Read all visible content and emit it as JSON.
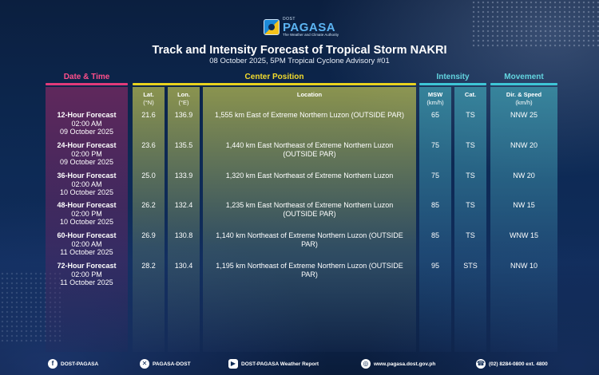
{
  "logo": {
    "small": "DOST",
    "name": "PAGASA",
    "tagline": "The Weather and Climate Authority"
  },
  "header": {
    "title": "Track and Intensity Forecast of Tropical Storm NAKRI",
    "subtitle": "08 October 2025, 5PM Tropical Cyclone Advisory #01"
  },
  "groups": {
    "date": "Date & Time",
    "center": "Center Position",
    "intensity": "Intensity",
    "movement": "Movement"
  },
  "columns": {
    "lat": "Lat.",
    "lat_unit": "(°N)",
    "lon": "Lon.",
    "lon_unit": "(°E)",
    "location": "Location",
    "msw": "MSW",
    "msw_unit": "(km/h)",
    "cat": "Cat.",
    "dir": "Dir. & Speed",
    "dir_unit": "(km/h)"
  },
  "rows": [
    {
      "forecast": "12-Hour Forecast",
      "time": "02:00 AM",
      "date": "09 October 2025",
      "lat": "21.6",
      "lon": "136.9",
      "location": "1,555 km East of Extreme Northern Luzon (OUTSIDE PAR)",
      "msw": "65",
      "cat": "TS",
      "dir": "NNW 25"
    },
    {
      "forecast": "24-Hour Forecast",
      "time": "02:00 PM",
      "date": "09 October 2025",
      "lat": "23.6",
      "lon": "135.5",
      "location": "1,440 km East Northeast of Extreme Northern Luzon (OUTSIDE PAR)",
      "msw": "75",
      "cat": "TS",
      "dir": "NNW 20"
    },
    {
      "forecast": "36-Hour Forecast",
      "time": "02:00 AM",
      "date": "10 October 2025",
      "lat": "25.0",
      "lon": "133.9",
      "location": "1,320 km East Northeast of Extreme Northern Luzon",
      "msw": "75",
      "cat": "TS",
      "dir": "NW 20"
    },
    {
      "forecast": "48-Hour Forecast",
      "time": "02:00 PM",
      "date": "10 October 2025",
      "lat": "26.2",
      "lon": "132.4",
      "location": "1,235 km East Northeast of Extreme Northern Luzon (OUTSIDE PAR)",
      "msw": "85",
      "cat": "TS",
      "dir": "NW 15"
    },
    {
      "forecast": "60-Hour Forecast",
      "time": "02:00 AM",
      "date": "11 October 2025",
      "lat": "26.9",
      "lon": "130.8",
      "location": "1,140 km Northeast of Extreme Northern Luzon (OUTSIDE PAR)",
      "msw": "85",
      "cat": "TS",
      "dir": "WNW 15"
    },
    {
      "forecast": "72-Hour Forecast",
      "time": "02:00 PM",
      "date": "11 October 2025",
      "lat": "28.2",
      "lon": "130.4",
      "location": "1,195 km Northeast of Extreme Northern Luzon (OUTSIDE PAR)",
      "msw": "95",
      "cat": "STS",
      "dir": "NNW 10"
    }
  ],
  "footer": {
    "facebook": "DOST-PAGASA",
    "x": "PAGASA-DOST",
    "youtube": "DOST-PAGASA Weather Report",
    "website": "www.pagasa.dost.gov.ph",
    "phone": "(02) 8284-0800 ext. 4800"
  }
}
